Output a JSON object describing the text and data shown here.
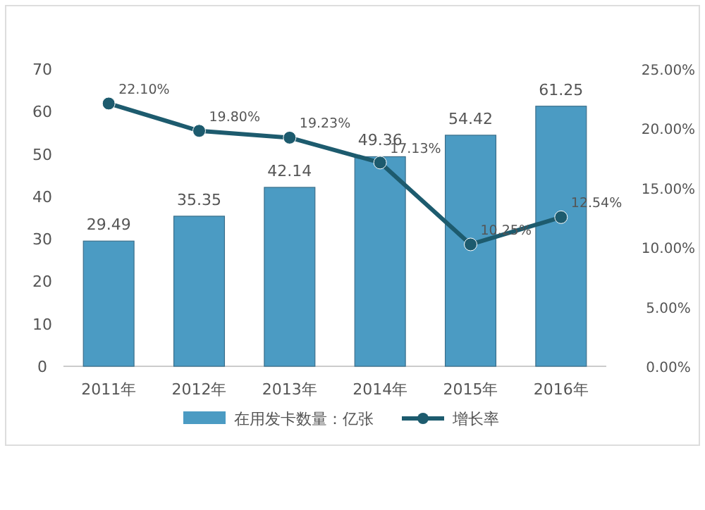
{
  "chart_data": {
    "type": "bar",
    "categories": [
      "2011年",
      "2012年",
      "2013年",
      "2014年",
      "2015年",
      "2016年"
    ],
    "series": [
      {
        "name": "在用发卡数量：亿张",
        "color": "#4b9bc3",
        "values": [
          29.49,
          35.35,
          42.14,
          49.36,
          54.42,
          61.25
        ]
      },
      {
        "name": "增长率",
        "type": "line",
        "axis": "y2",
        "color": "#1d5b6e",
        "marker": "circle",
        "values": [
          22.1,
          19.8,
          19.23,
          17.13,
          10.25,
          12.54
        ],
        "value_labels": [
          "22.10%",
          "19.80%",
          "19.23%",
          "17.13%",
          "10.25%",
          "12.54%"
        ]
      }
    ],
    "data_labels": true,
    "ylim": [
      0,
      70
    ],
    "yticks": [
      0,
      10,
      20,
      30,
      40,
      50,
      60,
      70
    ],
    "y2lim": [
      0,
      25
    ],
    "y2ticks": [
      {
        "value": 0,
        "label": "0.00%"
      },
      {
        "value": 5,
        "label": "5.00%"
      },
      {
        "value": 10,
        "label": "10.00%"
      },
      {
        "value": 15,
        "label": "15.00%"
      },
      {
        "value": 20,
        "label": "20.00%"
      },
      {
        "value": 25,
        "label": "25.00%"
      }
    ],
    "grid": false,
    "legend": "bottom"
  }
}
